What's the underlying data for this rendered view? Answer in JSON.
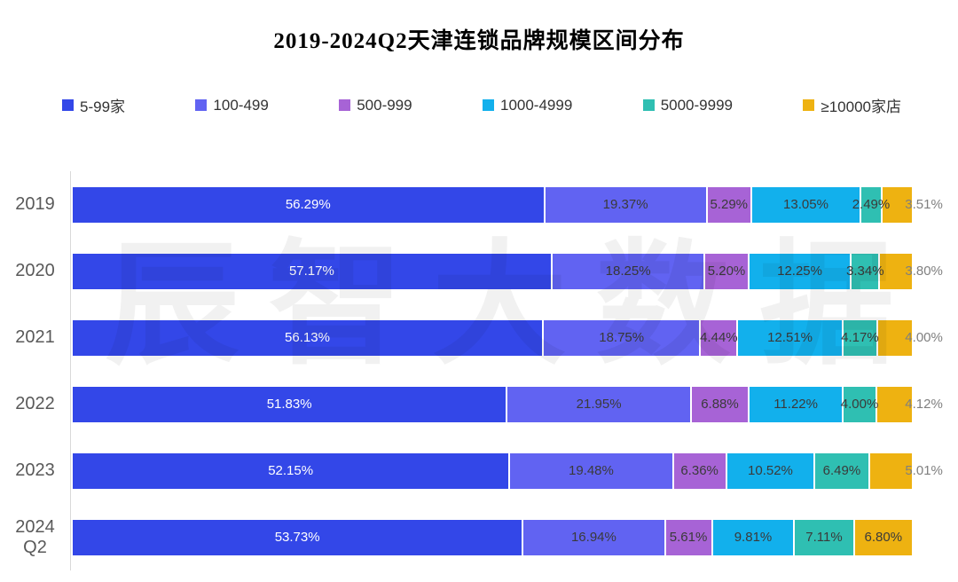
{
  "title": "2019-2024Q2天津连锁品牌规模区间分布",
  "watermark": "辰智大数据",
  "axis": {
    "line_color": "#d9d9d9",
    "category_label_color": "#595959"
  },
  "label_colors": {
    "inside_first": "#ffffff",
    "inside": "#3a3a3a",
    "outside": "#7f7f7f"
  },
  "chart_data": {
    "type": "bar",
    "orientation": "horizontal",
    "stacked": true,
    "unit": "%",
    "title": "2019-2024Q2天津连锁品牌规模区间分布",
    "categories": [
      "2019",
      "2020",
      "2021",
      "2022",
      "2023",
      "2024\nQ2"
    ],
    "series": [
      {
        "name": "5-99家",
        "color": "#3347e8",
        "values": [
          56.29,
          57.17,
          56.13,
          51.83,
          52.15,
          53.73
        ]
      },
      {
        "name": "100-499",
        "color": "#6163f2",
        "values": [
          19.37,
          18.25,
          18.75,
          21.95,
          19.48,
          16.94
        ]
      },
      {
        "name": "500-999",
        "color": "#a763d6",
        "values": [
          5.29,
          5.2,
          4.44,
          6.88,
          6.36,
          5.61
        ]
      },
      {
        "name": "1000-4999",
        "color": "#12b0ec",
        "values": [
          13.05,
          12.25,
          12.51,
          11.22,
          10.52,
          9.81
        ]
      },
      {
        "name": "5000-9999",
        "color": "#2fbfb2",
        "values": [
          2.49,
          3.34,
          4.17,
          4.0,
          6.49,
          7.11
        ]
      },
      {
        "name": "≥10000家店",
        "color": "#eeb211",
        "values": [
          3.51,
          3.8,
          4.0,
          4.12,
          5.01,
          6.8
        ]
      }
    ],
    "xlim": [
      0,
      100
    ],
    "value_label_format": "0.00%",
    "legend_position": "top",
    "grid": false
  }
}
